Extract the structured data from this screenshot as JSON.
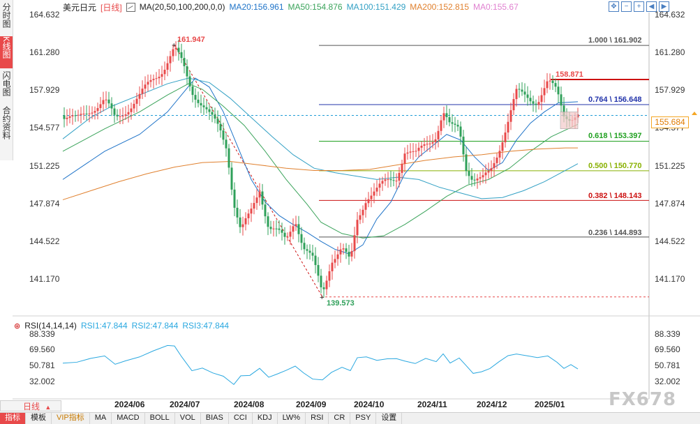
{
  "sidebar": {
    "tabs": [
      {
        "label": "分时图"
      },
      {
        "label": "K线图"
      },
      {
        "label": "闪电图"
      },
      {
        "label": "合约资料"
      }
    ]
  },
  "legend": {
    "symbol": "美元日元",
    "period": "[日线]",
    "ma_params": "MA(20,50,100,200,0,0)",
    "ma20": "MA20:156.961",
    "ma50": "MA50:154.876",
    "ma100": "MA100:151.429",
    "ma200": "MA200:152.815",
    "ma0": "MA0:155.67"
  },
  "colors": {
    "up": "#e8494a",
    "down": "#2fa05a",
    "ma20": "#1e73c8",
    "ma50": "#3aa35a",
    "ma100": "#32a0c4",
    "ma200": "#e0802e",
    "rsi": "#2aa8e0"
  },
  "price_axis": {
    "labels": [
      "164.632",
      "161.280",
      "157.929",
      "154.577",
      "151.225",
      "147.874",
      "144.522",
      "141.170"
    ],
    "current": "155.684"
  },
  "annotations": {
    "high": "161.947",
    "low": "139.573",
    "recent_high": "158.871"
  },
  "fib_levels": [
    {
      "label": "1.000 \\ 161.902",
      "color": "#555555"
    },
    {
      "label": "0.764 \\ 156.648",
      "color": "#2233aa"
    },
    {
      "label": "0.618 \\ 153.397",
      "color": "#20a020"
    },
    {
      "label": "0.500 \\ 150.770",
      "color": "#88b000"
    },
    {
      "label": "0.382 \\ 148.143",
      "color": "#cc1111"
    },
    {
      "label": "0.236 \\ 144.893",
      "color": "#555555"
    }
  ],
  "rsi": {
    "title": "RSI(14,14,14)",
    "rsi1": "RSI1:47.844",
    "rsi2": "RSI2:47.844",
    "rsi3": "RSI3:47.844",
    "axis_labels": [
      "88.339",
      "69.560",
      "50.781",
      "32.002"
    ]
  },
  "x_axis": {
    "labels": [
      "2024/06",
      "2024/07",
      "2024/08",
      "2024/09",
      "2024/10",
      "2024/11",
      "2024/12",
      "2025/01"
    ]
  },
  "period_button": "日线",
  "bottom_tabs": [
    "指标",
    "模板",
    "VIP指标",
    "MA",
    "MACD",
    "BOLL",
    "VOL",
    "BIAS",
    "CCI",
    "KDJ",
    "LW%",
    "RSI",
    "CR",
    "PSY",
    "设置"
  ],
  "watermark": "FX678"
}
